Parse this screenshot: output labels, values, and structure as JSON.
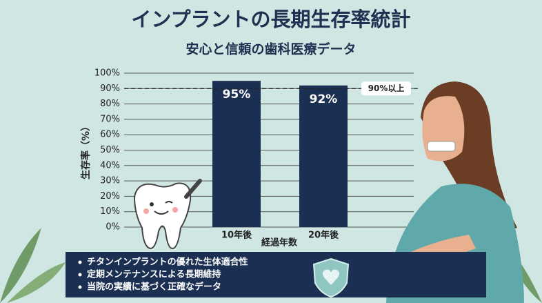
{
  "chart_data": {
    "type": "bar",
    "title": "インプラントの長期生存率統計",
    "subtitle": "安心と信頼の歯科医療データ",
    "y_label": "生存率（%）",
    "x_label": "経過年数",
    "categories": [
      "10年後",
      "20年後"
    ],
    "values": [
      95,
      92
    ],
    "value_labels": [
      "95%",
      "92%"
    ],
    "color": "#1b2f52",
    "ylim": [
      0,
      100
    ],
    "yticks": [
      {
        "value": 0,
        "label": "0%"
      },
      {
        "value": 10,
        "label": "10%"
      },
      {
        "value": 20,
        "label": "20%"
      },
      {
        "value": 30,
        "label": "30%"
      },
      {
        "value": 40,
        "label": "40%"
      },
      {
        "value": 50,
        "label": "50%"
      },
      {
        "value": 60,
        "label": "60%"
      },
      {
        "value": 70,
        "label": "70%"
      },
      {
        "value": 80,
        "label": "80%"
      },
      {
        "value": 90,
        "label": "90%"
      },
      {
        "value": 100,
        "label": "100%"
      }
    ],
    "grid": true,
    "reference_line": {
      "value": 90,
      "label": "90%以上"
    }
  },
  "notes": [
    "チタンインプラントの優れた生体適合性",
    "定期メンテナンスによる長期維持",
    "当院の実績に基づく正確なデータ"
  ]
}
